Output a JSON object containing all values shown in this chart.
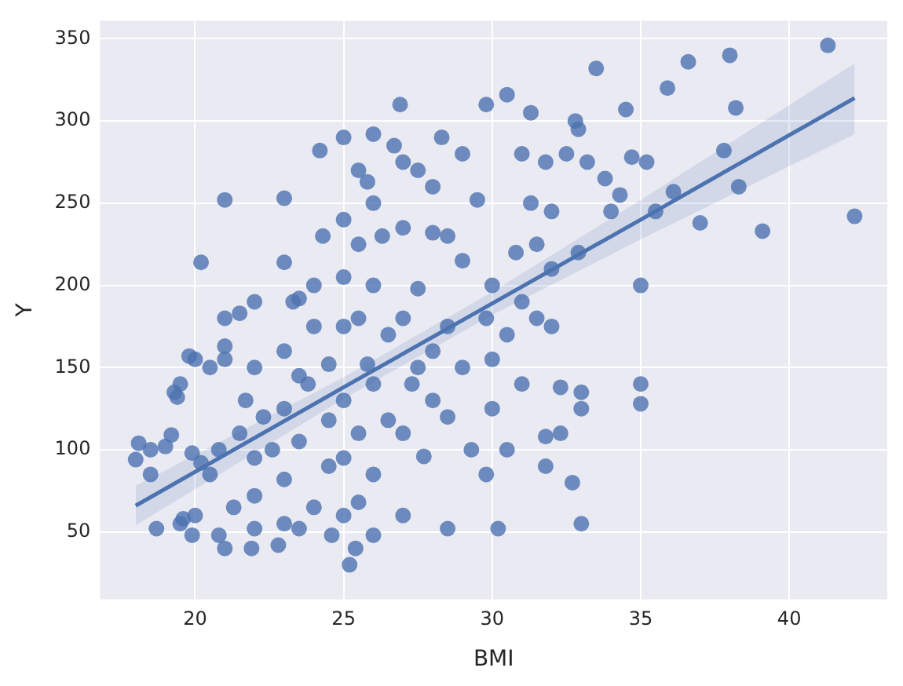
{
  "chart_data": {
    "type": "scatter",
    "xlabel": "BMI",
    "ylabel": "Y",
    "xlim": [
      16.8,
      43.3
    ],
    "ylim": [
      9,
      361
    ],
    "xticks": [
      20,
      25,
      30,
      35,
      40
    ],
    "yticks": [
      50,
      100,
      150,
      200,
      250,
      300,
      350
    ],
    "grid": true,
    "legend": false,
    "marker": "circle",
    "series": [
      {
        "type": "scatter",
        "color": "#4c72b0",
        "x": [
          18,
          18.1,
          18.5,
          18.5,
          19,
          19.3,
          19.4,
          19.5,
          19.2,
          18.7,
          19.5,
          19.6,
          20,
          19.9,
          19.9,
          20.2,
          19.8,
          20,
          20.5,
          20.2,
          20.5,
          21,
          21,
          21,
          21,
          20.8,
          20.8,
          21,
          21.3,
          21.5,
          21.5,
          21.7,
          22,
          22,
          22,
          22,
          22,
          21.9,
          22.3,
          22.6,
          22.8,
          23,
          23,
          23,
          23,
          23,
          23,
          23.3,
          23.5,
          23.5,
          23.5,
          23.5,
          23.8,
          24,
          24,
          24,
          24.2,
          24.3,
          24.5,
          24.5,
          24.5,
          24.6,
          25,
          25,
          25,
          25,
          25,
          25,
          25,
          25.2,
          25.4,
          25.5,
          25.5,
          25.5,
          25.5,
          25.5,
          25.8,
          25.8,
          26,
          26,
          26,
          26,
          26,
          26,
          26.3,
          26.5,
          26.5,
          26.7,
          26.9,
          27,
          27,
          27,
          27,
          27,
          27.3,
          27.5,
          27.5,
          27.5,
          27.7,
          28,
          28,
          28,
          28,
          28.3,
          28.5,
          28.5,
          28.5,
          28.5,
          29,
          29,
          29,
          29.3,
          29.5,
          29.8,
          29.8,
          29.8,
          30,
          30,
          30,
          30.2,
          30.5,
          30.5,
          30.5,
          30.8,
          31,
          31,
          31,
          31.3,
          31.3,
          31.5,
          31.5,
          31.8,
          31.8,
          31.8,
          32,
          32,
          32,
          32.3,
          32.3,
          32.5,
          32.7,
          32.8,
          32.9,
          32.9,
          33,
          33,
          33,
          33.2,
          33.5,
          33.8,
          34,
          34.3,
          34.5,
          34.7,
          35,
          35,
          35,
          35.2,
          35.5,
          35.9,
          36.1,
          36.6,
          37,
          37.8,
          38,
          38.2,
          38.3,
          39.1,
          41.3,
          42.2
        ],
        "values": [
          94,
          104,
          85,
          100,
          102,
          135,
          132,
          140,
          109,
          52,
          55,
          58,
          60,
          48,
          98,
          214,
          157,
          155,
          150,
          92,
          85,
          252,
          180,
          163,
          155,
          100,
          48,
          40,
          65,
          110,
          183,
          130,
          190,
          150,
          95,
          72,
          52,
          40,
          120,
          100,
          42,
          253,
          214,
          160,
          125,
          82,
          55,
          190,
          192,
          145,
          105,
          52,
          140,
          65,
          175,
          200,
          282,
          230,
          152,
          118,
          90,
          48,
          290,
          240,
          205,
          175,
          130,
          95,
          60,
          30,
          40,
          270,
          225,
          180,
          110,
          68,
          263,
          152,
          292,
          250,
          200,
          140,
          85,
          48,
          230,
          170,
          118,
          285,
          310,
          275,
          235,
          180,
          110,
          60,
          140,
          270,
          198,
          150,
          96,
          260,
          232,
          160,
          130,
          290,
          230,
          175,
          120,
          52,
          280,
          215,
          150,
          100,
          252,
          310,
          180,
          85,
          200,
          155,
          125,
          52,
          316,
          170,
          100,
          220,
          280,
          190,
          140,
          305,
          250,
          225,
          180,
          275,
          108,
          90,
          245,
          210,
          175,
          138,
          110,
          280,
          80,
          300,
          295,
          220,
          55,
          135,
          125,
          275,
          332,
          265,
          245,
          255,
          307,
          278,
          200,
          140,
          128,
          275,
          245,
          320,
          257,
          336,
          238,
          282,
          340,
          308,
          260,
          233,
          346,
          242
        ]
      },
      {
        "type": "line",
        "color": "#4c72b0",
        "marker": "none",
        "x": [
          18,
          25,
          30,
          35,
          42.2
        ],
        "values": [
          66,
          138,
          189,
          240,
          314
        ],
        "lower": [
          54,
          131,
          182,
          228,
          292
        ],
        "upper": [
          78,
          144,
          196,
          252,
          335
        ]
      }
    ]
  }
}
